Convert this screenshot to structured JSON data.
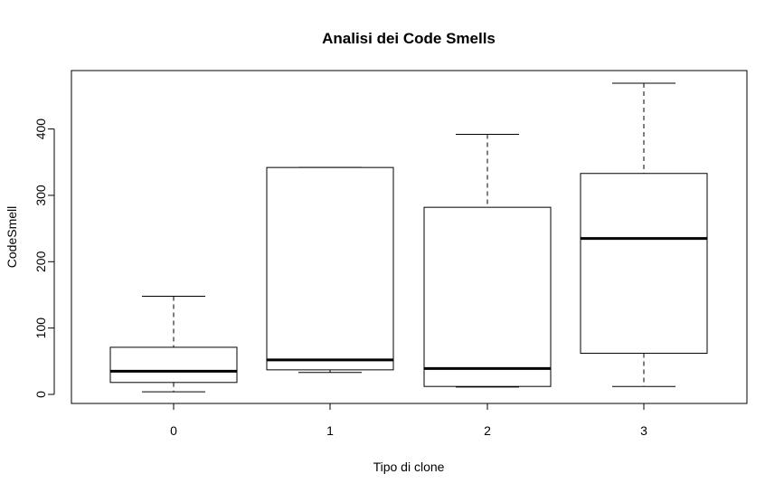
{
  "chart_data": {
    "type": "boxplot",
    "title": "Analisi dei Code Smells",
    "xlabel": "Tipo di clone",
    "ylabel": "CodeSmell",
    "categories": [
      "0",
      "1",
      "2",
      "3"
    ],
    "boxes": [
      {
        "category": "0",
        "min": 4,
        "q1": 18,
        "median": 35,
        "q3": 71,
        "max": 148
      },
      {
        "category": "1",
        "min": 33,
        "q1": 37,
        "median": 52,
        "q3": 342,
        "max": 342
      },
      {
        "category": "2",
        "min": 11,
        "q1": 12,
        "median": 39,
        "q3": 282,
        "max": 392
      },
      {
        "category": "3",
        "min": 12,
        "q1": 62,
        "median": 235,
        "q3": 333,
        "max": 469
      }
    ],
    "yticks": [
      0,
      100,
      200,
      300,
      400
    ],
    "ylim": [
      -13,
      485
    ],
    "grid": false,
    "legend": "none"
  }
}
